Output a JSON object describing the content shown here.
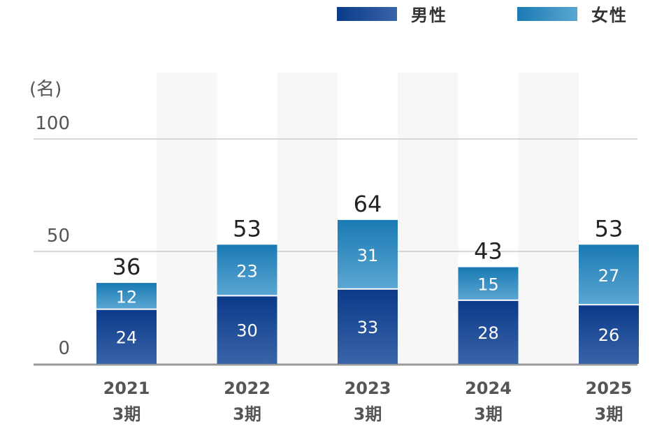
{
  "chart_data": {
    "type": "bar",
    "stacked": true,
    "unit": "(名)",
    "categories": [
      {
        "year": "2021",
        "period": "3期"
      },
      {
        "year": "2022",
        "period": "3期"
      },
      {
        "year": "2023",
        "period": "3期"
      },
      {
        "year": "2024",
        "period": "3期"
      },
      {
        "year": "2025",
        "period": "3期"
      }
    ],
    "series": [
      {
        "name": "男性",
        "values": [
          24,
          30,
          33,
          28,
          26
        ],
        "color_top": "#0a3a8a",
        "color_bottom": "#3a64a8"
      },
      {
        "name": "女性",
        "values": [
          12,
          23,
          31,
          15,
          27
        ],
        "color_top": "#1a7ab3",
        "color_bottom": "#5aa6d2"
      }
    ],
    "totals": [
      "36",
      "53",
      "64",
      "43",
      "53"
    ],
    "ylim": [
      0,
      100
    ],
    "yticks": [
      "0",
      "50",
      "100"
    ],
    "grid": true,
    "legend_position": "top-right",
    "colors": {
      "gridline": "#cccccc",
      "baseline": "#999999",
      "column_band": "#f7f7f7"
    }
  }
}
